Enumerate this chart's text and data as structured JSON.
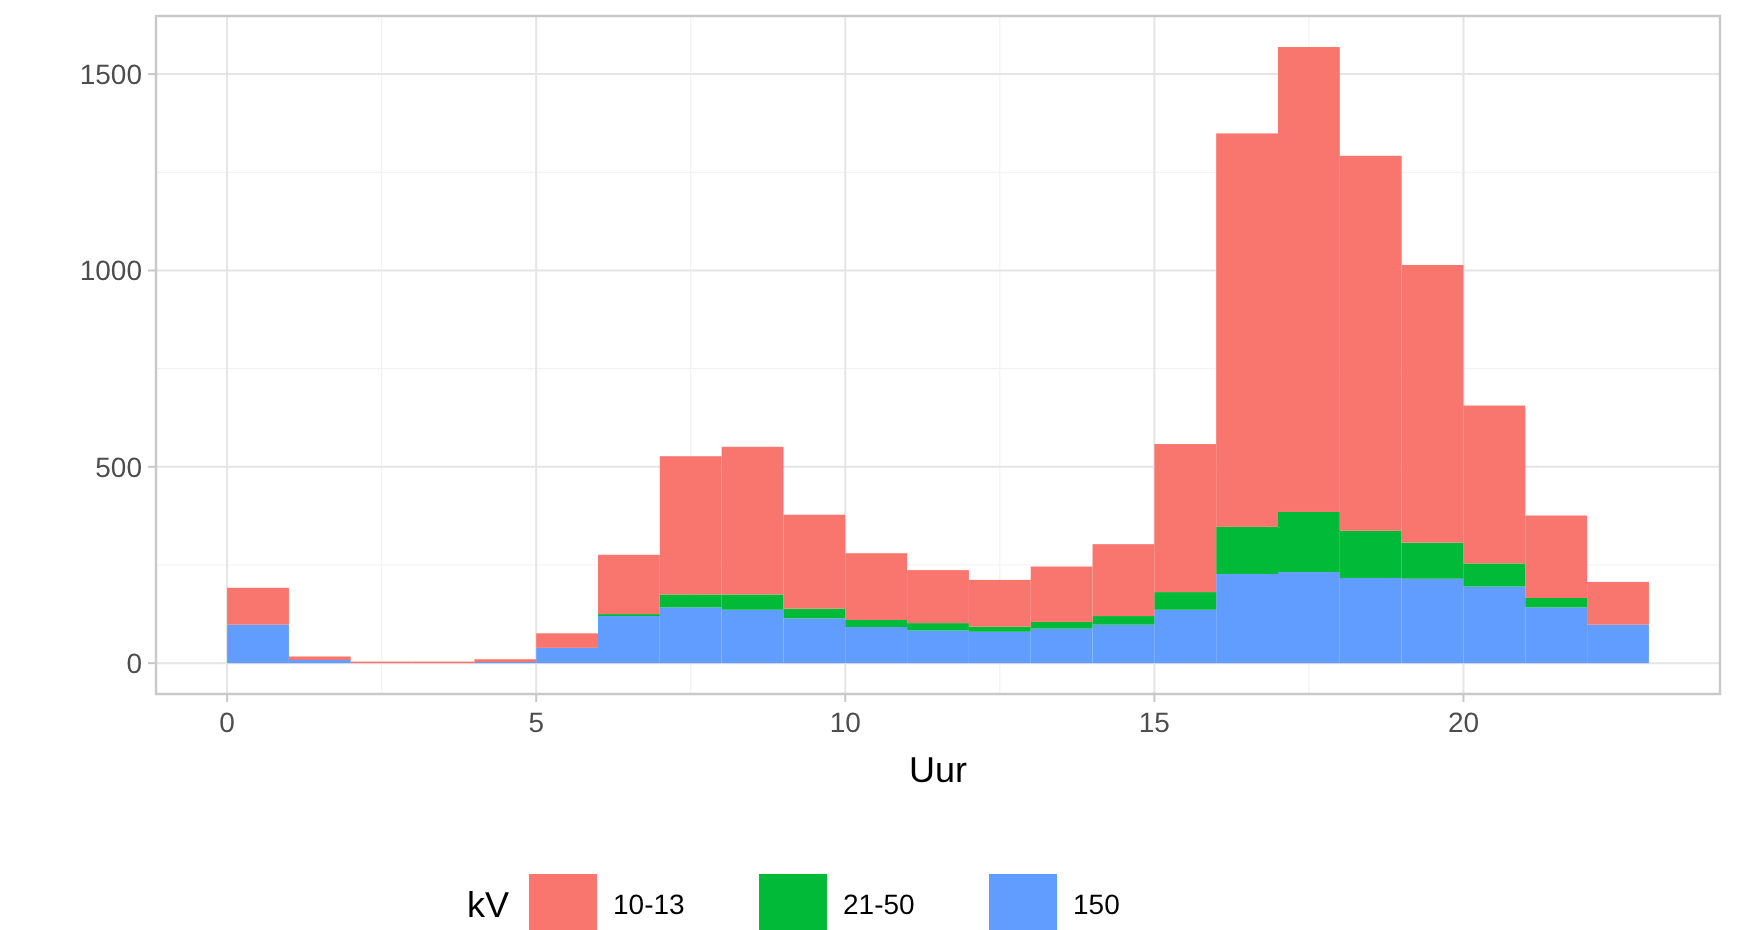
{
  "chart_data": {
    "type": "bar",
    "xlabel": "Uur",
    "legend_title": "kV",
    "stacked": true,
    "grid": true,
    "legend": "bottom",
    "x": [
      0.5,
      1.5,
      2.5,
      3.5,
      4.5,
      5.5,
      6.5,
      7.5,
      8.5,
      9.5,
      10.5,
      11.5,
      12.5,
      13.5,
      14.5,
      15.5,
      16.5,
      17.5,
      18.5,
      19.5,
      20.5,
      21.5,
      22.5
    ],
    "series": [
      {
        "name": "150",
        "color": "#619cff",
        "values": [
          98,
          8,
          0,
          0,
          3,
          39,
          120,
          142,
          136,
          114,
          92,
          83,
          80,
          88,
          98,
          136,
          227,
          232,
          217,
          215,
          195,
          142,
          98
        ]
      },
      {
        "name": "21-50",
        "color": "#00ba38",
        "values": [
          0,
          0,
          0,
          0,
          0,
          0,
          5,
          33,
          39,
          25,
          18,
          19,
          13,
          17,
          22,
          45,
          120,
          153,
          120,
          92,
          59,
          24,
          0
        ]
      },
      {
        "name": "10-13",
        "color": "#f8766d",
        "values": [
          94,
          9,
          4,
          4,
          7,
          37,
          151,
          352,
          376,
          239,
          170,
          135,
          119,
          141,
          183,
          377,
          1002,
          1184,
          955,
          707,
          402,
          210,
          109
        ]
      }
    ],
    "xlim": [
      -1.15,
      24.15
    ],
    "xticks": [
      0,
      5,
      10,
      15,
      20
    ],
    "ylim": [
      -78.5,
      1648
    ],
    "yticks": [
      0,
      500,
      1000,
      1500
    ]
  }
}
